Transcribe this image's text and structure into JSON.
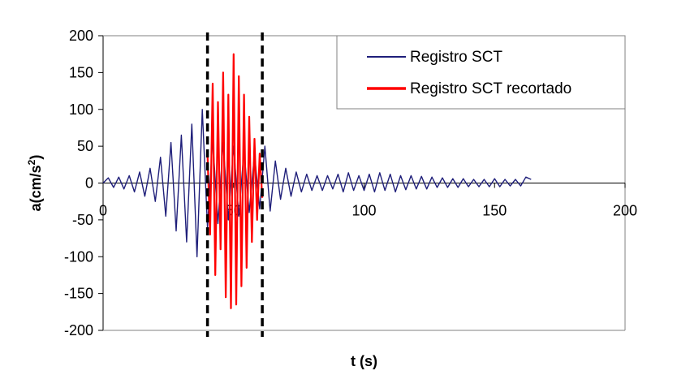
{
  "chart_data": {
    "type": "line",
    "title": "",
    "xlabel": "t (s)",
    "ylabel_main": "a(cm/s",
    "ylabel_sup": "2",
    "ylabel_close": ")",
    "xlim": [
      0,
      200
    ],
    "ylim": [
      -200,
      200
    ],
    "xticks": [
      0,
      50,
      100,
      150,
      200
    ],
    "yticks": [
      200,
      150,
      100,
      50,
      0,
      -50,
      -100,
      -150,
      -200
    ],
    "grid": false,
    "legend_position": "top-right",
    "cut_window": [
      40,
      61
    ],
    "series": [
      {
        "name": "Registro SCT",
        "color": "#1f1f7a",
        "x": [
          0,
          2,
          4,
          6,
          8,
          10,
          12,
          14,
          16,
          18,
          20,
          22,
          24,
          26,
          28,
          30,
          32,
          34,
          36,
          38,
          40,
          42,
          44,
          46,
          48,
          50,
          52,
          54,
          56,
          58,
          60,
          62,
          64,
          66,
          68,
          70,
          72,
          74,
          76,
          78,
          80,
          82,
          84,
          86,
          88,
          90,
          92,
          94,
          96,
          98,
          100,
          102,
          104,
          106,
          108,
          110,
          112,
          114,
          116,
          118,
          120,
          122,
          124,
          126,
          128,
          130,
          132,
          134,
          136,
          138,
          140,
          142,
          144,
          146,
          148,
          150,
          152,
          154,
          156,
          158,
          160,
          162,
          164
        ],
        "y": [
          0,
          7,
          -6,
          8,
          -8,
          10,
          -12,
          15,
          -18,
          20,
          -25,
          35,
          -45,
          55,
          -65,
          65,
          -80,
          80,
          -100,
          100,
          -60,
          60,
          -55,
          55,
          -50,
          50,
          -45,
          45,
          -40,
          40,
          -35,
          50,
          -38,
          30,
          -22,
          20,
          -18,
          15,
          -12,
          12,
          -10,
          10,
          -10,
          10,
          -8,
          12,
          -12,
          14,
          -10,
          10,
          -10,
          12,
          -12,
          14,
          -10,
          12,
          -12,
          10,
          -9,
          10,
          -8,
          9,
          -8,
          8,
          -6,
          7,
          -6,
          6,
          -6,
          6,
          -5,
          5,
          -5,
          5,
          -5,
          6,
          -5,
          5,
          -4,
          5,
          -4,
          8,
          5
        ]
      },
      {
        "name": "Registro SCT recortado",
        "color": "#ff0000",
        "x": [
          40,
          41,
          42,
          43,
          44,
          45,
          46,
          47,
          48,
          49,
          50,
          51,
          52,
          53,
          54,
          55,
          56,
          57,
          58,
          59,
          60,
          61
        ],
        "y": [
          40,
          -70,
          135,
          -125,
          110,
          -90,
          150,
          -155,
          120,
          -170,
          175,
          -165,
          145,
          -140,
          120,
          -115,
          90,
          -80,
          60,
          -50,
          40,
          -20
        ]
      }
    ]
  }
}
